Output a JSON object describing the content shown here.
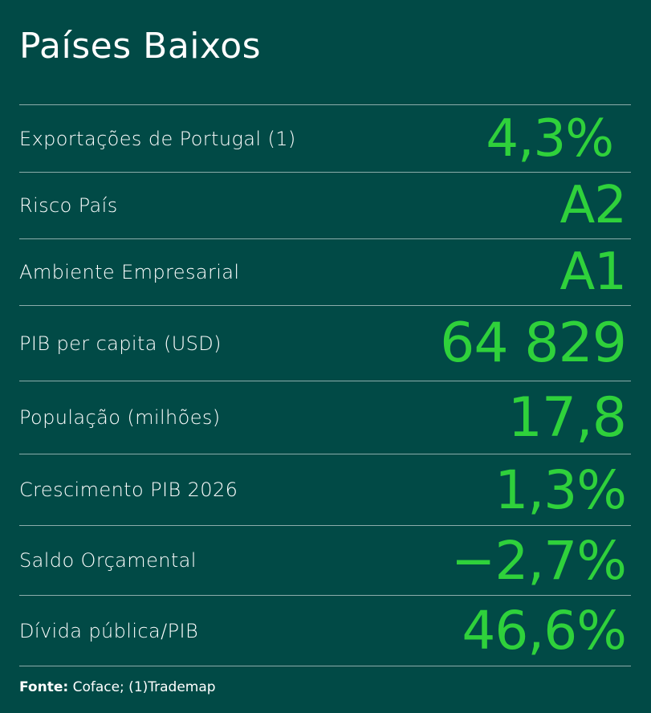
{
  "title": "Países Baixos",
  "accent_color": "#2fd13b",
  "background_color": "#014a46",
  "rows": [
    {
      "label": "Exportações de Portugal  (1)",
      "value": "4,3%"
    },
    {
      "label": "Risco País",
      "value": "A2"
    },
    {
      "label": "Ambiente Empresarial",
      "value": "A1"
    },
    {
      "label": "PIB per capita (USD)",
      "value": "64 829"
    },
    {
      "label": "População (milhões)",
      "value": "17,8"
    },
    {
      "label": "Crescimento PIB 2026",
      "value": "1,3%"
    },
    {
      "label": "Saldo Orçamental",
      "value": "−2,7%"
    },
    {
      "label": "Dívida pública/PIB",
      "value": "46,6%"
    }
  ],
  "source": {
    "prefix": "Fonte:",
    "text": " Coface; (1)Trademap"
  }
}
